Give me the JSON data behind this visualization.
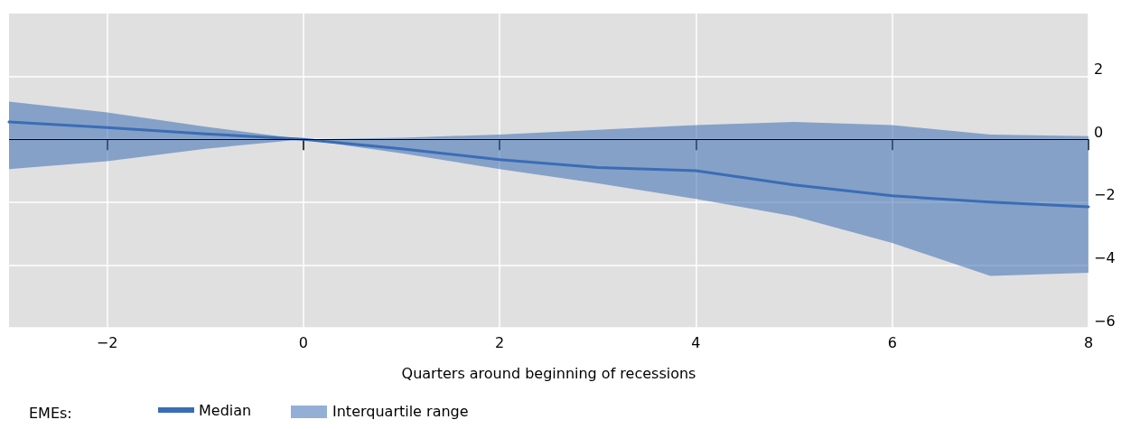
{
  "chart_data": {
    "type": "line",
    "xlabel": "Quarters around beginning of recessions",
    "legend_title": "EMEs:",
    "annotations": [
      "Interquartile range"
    ],
    "x": [
      -3,
      -2,
      -1,
      0,
      1,
      2,
      3,
      4,
      5,
      6,
      7,
      8
    ],
    "series": [
      {
        "name": "Median",
        "color": "#3a6db5",
        "values": [
          0.55,
          0.37,
          0.17,
          0,
          -0.3,
          -0.65,
          -0.9,
          -1.0,
          -1.45,
          -1.8,
          -2.0,
          -2.15
        ],
        "lower": [
          -0.95,
          -0.7,
          -0.3,
          0,
          -0.45,
          -0.95,
          -1.4,
          -1.9,
          -2.45,
          -3.3,
          -4.35,
          -4.25
        ],
        "upper": [
          1.2,
          0.85,
          0.4,
          0,
          0.05,
          0.15,
          0.3,
          0.45,
          0.55,
          0.45,
          0.15,
          0.1
        ]
      }
    ],
    "xlim": [
      -3,
      8
    ],
    "xticks": [
      -2,
      0,
      2,
      4,
      6,
      8
    ],
    "ylim": [
      -6,
      4
    ],
    "yticks": [
      -6,
      -4,
      -2,
      0,
      2
    ],
    "ref_lines": [
      {
        "axis": "y",
        "value": 0,
        "color": "#000000"
      }
    ],
    "grid": true,
    "legend": "bottom left",
    "marker": "none",
    "line_style": "solid"
  }
}
